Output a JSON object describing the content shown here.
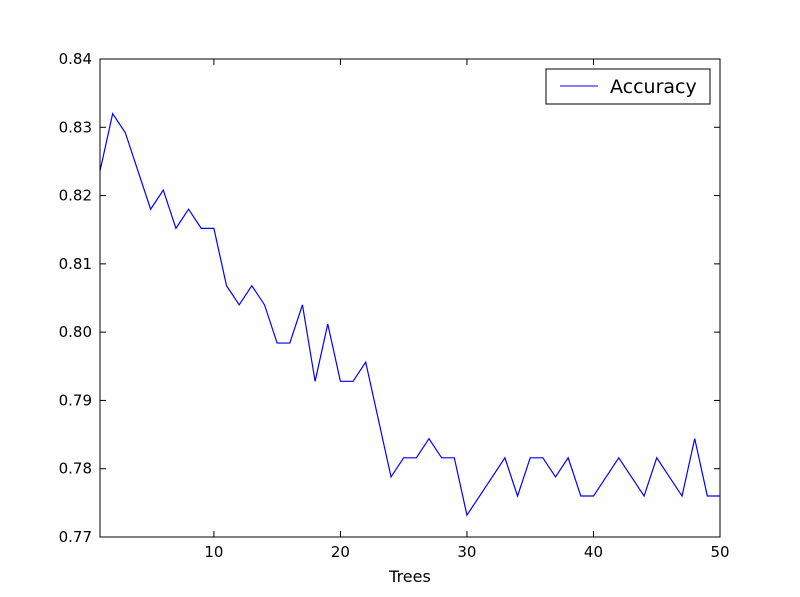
{
  "chart_data": {
    "type": "line",
    "title": "",
    "xlabel": "Trees",
    "ylabel": "",
    "xlim": [
      1,
      50
    ],
    "ylim": [
      0.77,
      0.84
    ],
    "x_ticks": [
      10,
      20,
      30,
      40,
      50
    ],
    "x_tick_labels": [
      "10",
      "20",
      "30",
      "40",
      "50"
    ],
    "y_ticks": [
      0.77,
      0.78,
      0.79,
      0.8,
      0.81,
      0.82,
      0.83,
      0.84
    ],
    "y_tick_labels": [
      "0.77",
      "0.78",
      "0.79",
      "0.80",
      "0.81",
      "0.82",
      "0.83",
      "0.84"
    ],
    "grid": false,
    "legend_position": "top-right",
    "series": [
      {
        "name": "Accuracy",
        "color": "#0000ff",
        "x": [
          1,
          2,
          3,
          4,
          5,
          6,
          7,
          8,
          9,
          10,
          11,
          12,
          13,
          14,
          15,
          16,
          17,
          18,
          19,
          20,
          21,
          22,
          23,
          24,
          25,
          26,
          27,
          28,
          29,
          30,
          31,
          32,
          33,
          34,
          35,
          36,
          37,
          38,
          39,
          40,
          41,
          42,
          43,
          44,
          45,
          46,
          47,
          48,
          49,
          50
        ],
        "values": [
          0.8236,
          0.832,
          0.8292,
          0.8236,
          0.818,
          0.8208,
          0.8152,
          0.818,
          0.8152,
          0.8152,
          0.8068,
          0.804,
          0.8068,
          0.804,
          0.7984,
          0.7984,
          0.804,
          0.7928,
          0.8012,
          0.7928,
          0.7928,
          0.7956,
          0.7872,
          0.7788,
          0.7816,
          0.7816,
          0.7844,
          0.7816,
          0.7816,
          0.7732,
          0.776,
          0.7788,
          0.7816,
          0.776,
          0.7816,
          0.7816,
          0.7788,
          0.7816,
          0.776,
          0.776,
          0.7788,
          0.7816,
          0.7788,
          0.776,
          0.7816,
          0.7788,
          0.776,
          0.7844,
          0.776,
          0.776
        ]
      }
    ]
  }
}
